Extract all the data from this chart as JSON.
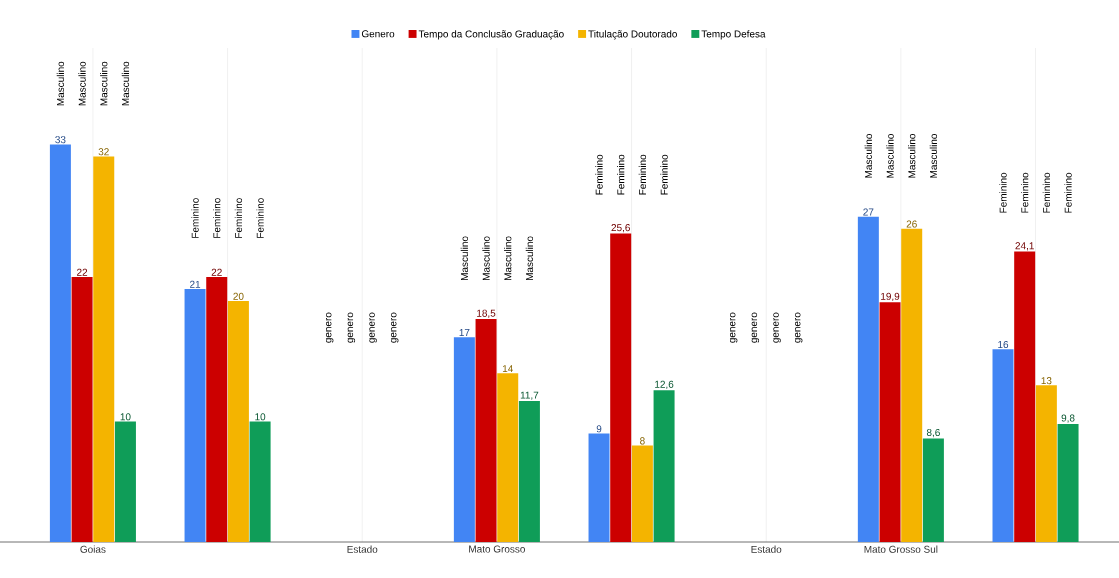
{
  "chart_data": {
    "type": "bar",
    "categories": [
      "Goias",
      null,
      "Estado",
      "Mato Grosso",
      null,
      "Estado",
      "Mato Grosso Sul",
      null
    ],
    "series": [
      {
        "name": "Genero",
        "color": "#4285f4",
        "values": [
          33,
          21,
          null,
          17,
          9,
          null,
          27,
          16
        ],
        "value_labels": [
          "33",
          "21",
          null,
          "17",
          "9",
          null,
          "27",
          "16"
        ]
      },
      {
        "name": "Tempo da Conclusão Graduação",
        "color": "#cc0000",
        "values": [
          22,
          22,
          null,
          18.5,
          25.6,
          null,
          19.9,
          24.1
        ],
        "value_labels": [
          "22",
          "22",
          null,
          "18,5",
          "25,6",
          null,
          "19,9",
          "24,1"
        ]
      },
      {
        "name": "Titulação Doutorado",
        "color": "#f4b400",
        "values": [
          32,
          20,
          null,
          14,
          8,
          null,
          26,
          13
        ],
        "value_labels": [
          "32",
          "20",
          null,
          "14",
          "8",
          null,
          "26",
          "13"
        ]
      },
      {
        "name": "Tempo Defesa",
        "color": "#0f9d58",
        "values": [
          10,
          10,
          null,
          11.7,
          12.6,
          null,
          8.6,
          9.8
        ],
        "value_labels": [
          "10",
          "10",
          null,
          "11,7",
          "12,6",
          null,
          "8,6",
          "9,8"
        ]
      }
    ],
    "annotations": [
      "Masculino",
      "Masculino",
      "Masculino",
      "Masculino",
      "Feminino",
      "Feminino",
      "Feminino",
      "Feminino",
      "genero",
      "genero",
      "genero",
      "genero",
      "Masculino",
      "Masculino",
      "Masculino",
      "Masculino",
      "Feminino",
      "Feminino",
      "Feminino",
      "Feminino",
      "genero",
      "genero",
      "genero",
      "genero",
      "Masculino",
      "Masculino",
      "Masculino",
      "Masculino",
      "Feminino",
      "Feminino",
      "Feminino",
      "Feminino"
    ],
    "ylim": [
      0,
      41
    ],
    "grid": true,
    "legend": "top",
    "tick_labels": "x"
  }
}
